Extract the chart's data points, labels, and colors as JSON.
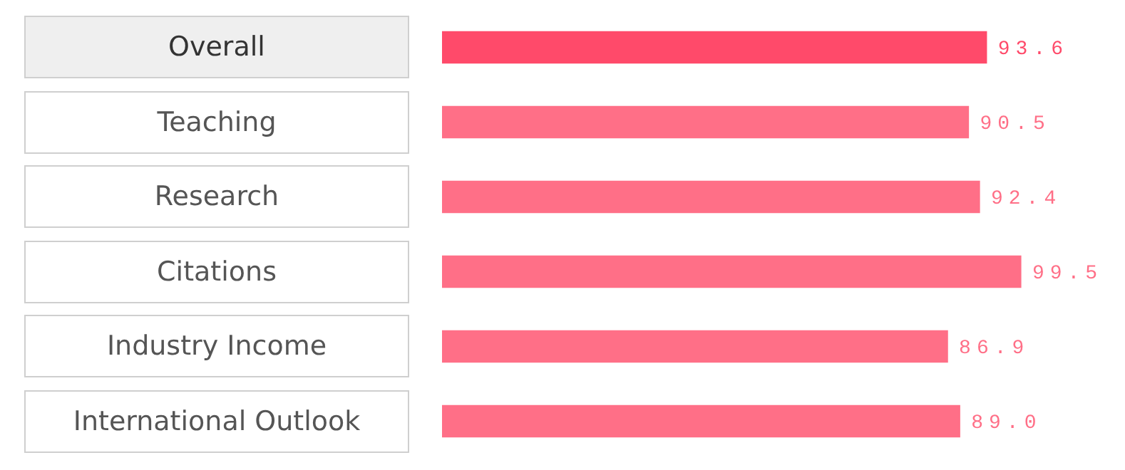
{
  "chart_data": {
    "type": "bar",
    "orientation": "horizontal",
    "categories": [
      "Overall",
      "Teaching",
      "Research",
      "Citations",
      "Industry Income",
      "International Outlook"
    ],
    "values": [
      93.6,
      90.5,
      92.4,
      99.5,
      86.9,
      89.0
    ],
    "colors": [
      "#ff4a6a",
      "#ff6f87",
      "#ff6f87",
      "#ff6f87",
      "#ff6f87",
      "#ff6f87"
    ],
    "value_labels": [
      "93.6",
      "90.5",
      "92.4",
      "99.5",
      "86.9",
      "89.0"
    ]
  }
}
